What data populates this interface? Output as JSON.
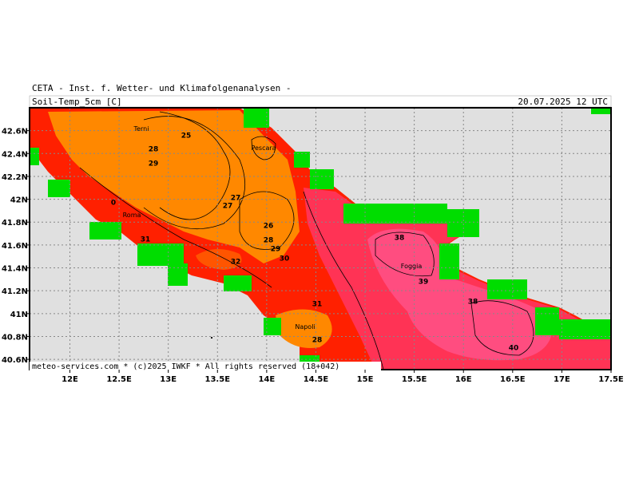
{
  "header": {
    "institute": "CETA - Inst. f. Wetter- und Klimafolgenanalysen -",
    "parameter": "Soil-Temp_5cm [C]",
    "valid_time": "20.07.2025 12 UTC"
  },
  "map": {
    "lonlim": [
      11.59,
      17.5
    ],
    "latlim": [
      40.51,
      42.8
    ],
    "lon_ticks": [
      {
        "value": 12,
        "label": "12E"
      },
      {
        "value": 12.5,
        "label": "12.5E"
      },
      {
        "value": 13,
        "label": "13E"
      },
      {
        "value": 13.5,
        "label": "13.5E"
      },
      {
        "value": 14,
        "label": "14E"
      },
      {
        "value": 14.5,
        "label": "14.5E"
      },
      {
        "value": 15,
        "label": "15E"
      },
      {
        "value": 15.5,
        "label": "15.5E"
      },
      {
        "value": 16,
        "label": "16E"
      },
      {
        "value": 16.5,
        "label": "16.5E"
      },
      {
        "value": 17,
        "label": "17E"
      },
      {
        "value": 17.5,
        "label": "17.5E"
      }
    ],
    "lat_ticks": [
      {
        "value": 42.6,
        "label": "42.6N"
      },
      {
        "value": 42.4,
        "label": "42.4N"
      },
      {
        "value": 42.2,
        "label": "42.2N"
      },
      {
        "value": 42,
        "label": "42N"
      },
      {
        "value": 41.8,
        "label": "41.8N"
      },
      {
        "value": 41.6,
        "label": "41.6N"
      },
      {
        "value": 41.4,
        "label": "41.4N"
      },
      {
        "value": 41.2,
        "label": "41.2N"
      },
      {
        "value": 41,
        "label": "41N"
      },
      {
        "value": 40.8,
        "label": "40.8N"
      },
      {
        "value": 40.6,
        "label": "40.6N"
      }
    ],
    "places": [
      "Terni",
      "Pescara",
      "Roma",
      "Foggia",
      "Napoli"
    ],
    "contour_labels": [
      "25",
      "28",
      "29",
      "27",
      "27",
      "26",
      "28",
      "29",
      "30",
      "31",
      "32",
      "31",
      "38",
      "39",
      "38",
      "40",
      "0",
      "28"
    ]
  },
  "footer": "meteo-services.com * (c)2025 IWKF * All rights reserved (18+042)"
}
